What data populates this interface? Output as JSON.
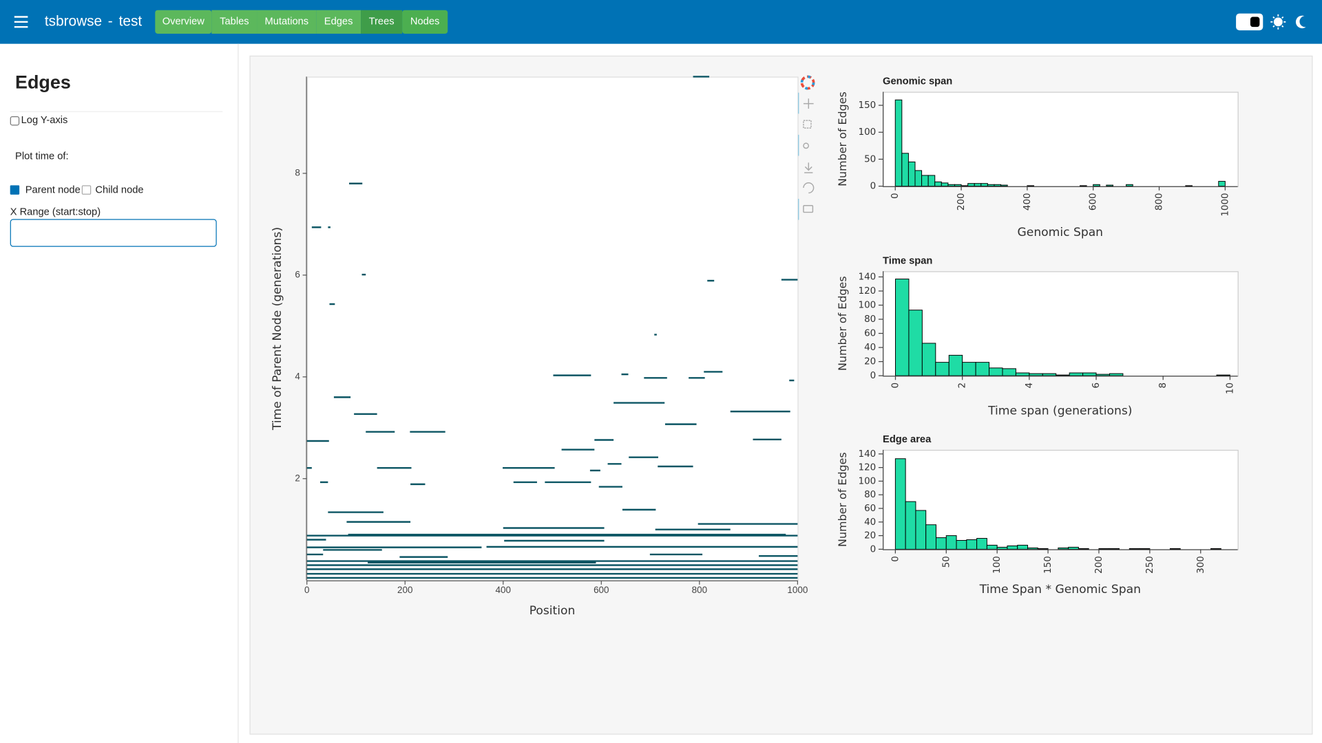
{
  "header": {
    "title": "tsbrowse",
    "separator": "-",
    "name": "test",
    "nav": [
      "Overview",
      "Tables",
      "Mutations",
      "Edges",
      "Trees",
      "Nodes"
    ]
  },
  "sidebar": {
    "title": "Edges",
    "log_y_label": "Log Y-axis",
    "plot_time_label": "Plot time of:",
    "options": [
      "Parent node",
      "Child node"
    ],
    "x_range_label": "X Range (start:stop)"
  },
  "chart_data": [
    {
      "type": "segment",
      "xlabel": "Position",
      "ylabel": "Time of Parent Node (generations)",
      "color": "#0b5563",
      "xlim": [
        0,
        1000
      ],
      "ylim": [
        0,
        9.9
      ],
      "xticks": [
        0,
        200,
        400,
        600,
        800,
        1000
      ],
      "yticks": [
        2,
        4,
        6,
        8
      ],
      "x_start": [
        787,
        86,
        10,
        43,
        112,
        967,
        816,
        46,
        708,
        502,
        641,
        687,
        778,
        809,
        983,
        55,
        625,
        96,
        863,
        730,
        120,
        210,
        0,
        909,
        586,
        519,
        656,
        0,
        143,
        399,
        715,
        577,
        613,
        27,
        211,
        421,
        485,
        595,
        43,
        643,
        81,
        797,
        400,
        710,
        0,
        84,
        0,
        402,
        0,
        366,
        33,
        0,
        189,
        699,
        921,
        0,
        124,
        0,
        0,
        0,
        0
      ],
      "x_end": [
        820,
        113,
        29,
        48,
        120,
        1000,
        830,
        57,
        713,
        579,
        655,
        734,
        811,
        847,
        993,
        89,
        729,
        143,
        985,
        794,
        179,
        282,
        45,
        967,
        625,
        586,
        716,
        10,
        213,
        505,
        787,
        598,
        641,
        43,
        241,
        469,
        579,
        643,
        156,
        711,
        211,
        1000,
        606,
        863,
        1000,
        976,
        39,
        606,
        356,
        1000,
        153,
        33,
        287,
        806,
        1000,
        1000,
        589,
        1000,
        1000,
        1000,
        1000
      ],
      "y": [
        9.9,
        7.8,
        6.94,
        6.94,
        6.01,
        5.91,
        5.89,
        5.43,
        4.83,
        4.03,
        4.05,
        3.98,
        3.98,
        4.1,
        3.93,
        3.6,
        3.49,
        3.27,
        3.32,
        3.07,
        2.92,
        2.92,
        2.74,
        2.77,
        2.76,
        2.57,
        2.42,
        2.21,
        2.21,
        2.21,
        2.24,
        2.16,
        2.29,
        1.93,
        1.89,
        1.93,
        1.93,
        1.84,
        1.34,
        1.39,
        1.15,
        1.11,
        1.03,
        1.0,
        0.88,
        0.9,
        0.8,
        0.78,
        0.65,
        0.66,
        0.6,
        0.51,
        0.46,
        0.51,
        0.48,
        0.38,
        0.35,
        0.3,
        0.22,
        0.13,
        0.05
      ]
    },
    {
      "type": "histogram",
      "title": "Genomic span",
      "xlabel": "Genomic Span",
      "ylabel": "Number of Edges",
      "color": "#1fdca5",
      "xlim": [
        -38,
        1038
      ],
      "ylim": [
        0,
        175
      ],
      "xticks": [
        0,
        200,
        400,
        600,
        800,
        1000
      ],
      "yticks": [
        0,
        50,
        100,
        150
      ],
      "bins": [
        0,
        20,
        40,
        60,
        80,
        100,
        120,
        140,
        160,
        180,
        200,
        220,
        240,
        260,
        280,
        300,
        320,
        340,
        360,
        380,
        400,
        420,
        440,
        460,
        480,
        500,
        520,
        540,
        560,
        580,
        600,
        620,
        640,
        660,
        680,
        700,
        720,
        740,
        760,
        780,
        800,
        820,
        840,
        860,
        880,
        900,
        920,
        940,
        960,
        980,
        1000
      ],
      "counts": [
        160,
        61,
        45,
        29,
        20,
        20,
        8,
        6,
        3,
        3,
        1,
        5,
        5,
        5,
        3,
        3,
        2,
        0,
        0,
        0,
        1,
        0,
        0,
        0,
        0,
        0,
        0,
        0,
        1,
        0,
        3,
        0,
        2,
        0,
        0,
        3,
        0,
        0,
        0,
        0,
        0,
        0,
        0,
        0,
        1,
        0,
        0,
        0,
        0,
        9
      ]
    },
    {
      "type": "histogram",
      "title": "Time span",
      "xlabel": "Time span (generations)",
      "ylabel": "Number of Edges",
      "color": "#1fdca5",
      "xlim": [
        -0.38,
        10.23
      ],
      "ylim": [
        0,
        148
      ],
      "xticks": [
        0,
        2,
        4,
        6,
        8,
        10
      ],
      "yticks": [
        0,
        20,
        40,
        60,
        80,
        100,
        120,
        140
      ],
      "bins": [
        0,
        0.4,
        0.8,
        1.2,
        1.6,
        2,
        2.4,
        2.8,
        3.2,
        3.6,
        4,
        4.4,
        4.8,
        5.2,
        5.6,
        6,
        6.4,
        6.8,
        7.2,
        7.6,
        8,
        8.4,
        8.8,
        9.2,
        9.6,
        10
      ],
      "counts": [
        137,
        93,
        46,
        19,
        29,
        19,
        19,
        11,
        10,
        4,
        3,
        3,
        1,
        4,
        4,
        2,
        3,
        0,
        0,
        0,
        0,
        0,
        0,
        0,
        1
      ]
    },
    {
      "type": "histogram",
      "title": "Edge area",
      "xlabel": "Time Span * Genomic Span",
      "ylabel": "Number of Edges",
      "color": "#1fdca5",
      "xlim": [
        -12.4,
        336.4
      ],
      "ylim": [
        0,
        146
      ],
      "xticks": [
        0,
        50,
        100,
        150,
        200,
        250,
        300
      ],
      "yticks": [
        0,
        20,
        40,
        60,
        80,
        100,
        120,
        140
      ],
      "bins": [
        0,
        10,
        20,
        30,
        40,
        50,
        60,
        70,
        80,
        90,
        100,
        110,
        120,
        130,
        140,
        150,
        160,
        170,
        180,
        190,
        200,
        210,
        220,
        230,
        240,
        250,
        260,
        270,
        280,
        290,
        300,
        310,
        320,
        330
      ],
      "counts": [
        133,
        70,
        57,
        36,
        17,
        20,
        13,
        14,
        16,
        6,
        3,
        5,
        6,
        2,
        1,
        0,
        2,
        3,
        1,
        0,
        1,
        1,
        0,
        1,
        1,
        0,
        0,
        1,
        0,
        0,
        0,
        1,
        0
      ]
    }
  ]
}
